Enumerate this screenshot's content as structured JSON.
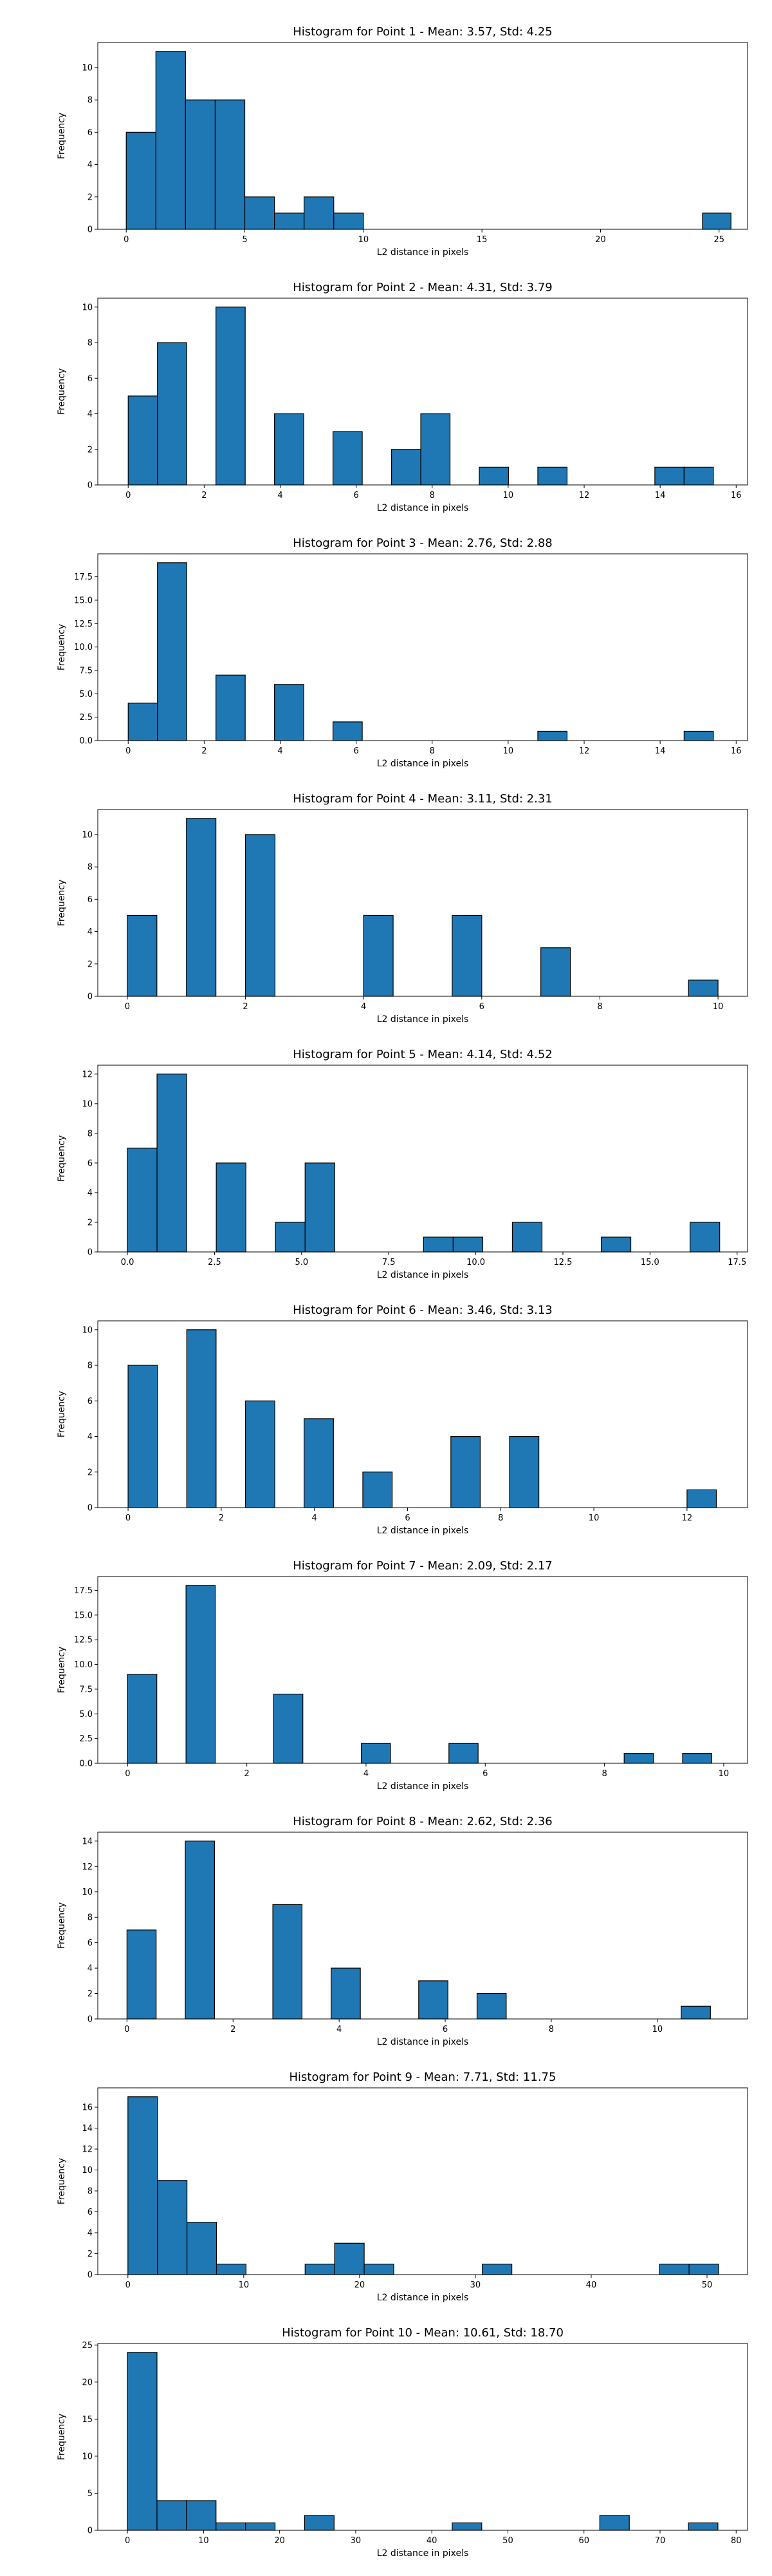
{
  "chart_data": [
    {
      "type": "bar",
      "title": "Histogram for Point 1 - Mean: 3.57, Std: 4.25",
      "xlabel": "L2 distance in pixels",
      "ylabel": "Frequency",
      "xlim": [
        -1.2,
        26.2
      ],
      "ylim": [
        0,
        11.55
      ],
      "xticks": [
        0,
        5,
        10,
        15,
        20,
        25
      ],
      "xtick_labels": [
        "0",
        "5",
        "10",
        "15",
        "20",
        "25"
      ],
      "yticks": [
        0,
        2,
        4,
        6,
        8,
        10
      ],
      "ytick_labels": [
        "0",
        "2",
        "4",
        "6",
        "8",
        "10"
      ],
      "bins": [
        {
          "x0": 0.0,
          "x1": 1.25,
          "count": 6
        },
        {
          "x0": 1.25,
          "x1": 2.5,
          "count": 11
        },
        {
          "x0": 2.5,
          "x1": 3.75,
          "count": 8
        },
        {
          "x0": 3.75,
          "x1": 5.0,
          "count": 8
        },
        {
          "x0": 5.0,
          "x1": 6.25,
          "count": 2
        },
        {
          "x0": 6.25,
          "x1": 7.5,
          "count": 1
        },
        {
          "x0": 7.5,
          "x1": 8.75,
          "count": 2
        },
        {
          "x0": 8.75,
          "x1": 10.0,
          "count": 1
        },
        {
          "x0": 24.3,
          "x1": 25.5,
          "count": 1
        }
      ]
    },
    {
      "type": "bar",
      "title": "Histogram for Point 2 - Mean: 4.31, Std: 3.79",
      "xlabel": "L2 distance in pixels",
      "ylabel": "Frequency",
      "xlim": [
        -0.8,
        16.3
      ],
      "ylim": [
        0,
        10.5
      ],
      "xticks": [
        0,
        2,
        4,
        6,
        8,
        10,
        12,
        14,
        16
      ],
      "xtick_labels": [
        "0",
        "2",
        "4",
        "6",
        "8",
        "10",
        "12",
        "14",
        "16"
      ],
      "yticks": [
        0,
        2,
        4,
        6,
        8,
        10
      ],
      "ytick_labels": [
        "0",
        "2",
        "4",
        "6",
        "8",
        "10"
      ],
      "bins": [
        {
          "x0": 0.0,
          "x1": 0.77,
          "count": 5
        },
        {
          "x0": 0.77,
          "x1": 1.54,
          "count": 8
        },
        {
          "x0": 2.31,
          "x1": 3.08,
          "count": 10
        },
        {
          "x0": 3.85,
          "x1": 4.62,
          "count": 4
        },
        {
          "x0": 5.39,
          "x1": 6.16,
          "count": 3
        },
        {
          "x0": 6.93,
          "x1": 7.7,
          "count": 2
        },
        {
          "x0": 7.7,
          "x1": 8.47,
          "count": 4
        },
        {
          "x0": 9.24,
          "x1": 10.01,
          "count": 1
        },
        {
          "x0": 10.78,
          "x1": 11.55,
          "count": 1
        },
        {
          "x0": 13.86,
          "x1": 14.63,
          "count": 1
        },
        {
          "x0": 14.63,
          "x1": 15.4,
          "count": 1
        }
      ]
    },
    {
      "type": "bar",
      "title": "Histogram for Point 3 - Mean: 2.76, Std: 2.88",
      "xlabel": "L2 distance in pixels",
      "ylabel": "Frequency",
      "xlim": [
        -0.8,
        16.3
      ],
      "ylim": [
        0,
        19.95
      ],
      "xticks": [
        0,
        2,
        4,
        6,
        8,
        10,
        12,
        14,
        16
      ],
      "xtick_labels": [
        "0",
        "2",
        "4",
        "6",
        "8",
        "10",
        "12",
        "14",
        "16"
      ],
      "yticks": [
        0,
        2.5,
        5,
        7.5,
        10,
        12.5,
        15,
        17.5
      ],
      "ytick_labels": [
        "0.0",
        "2.5",
        "5.0",
        "7.5",
        "10.0",
        "12.5",
        "15.0",
        "17.5"
      ],
      "bins": [
        {
          "x0": 0.0,
          "x1": 0.77,
          "count": 4
        },
        {
          "x0": 0.77,
          "x1": 1.54,
          "count": 19
        },
        {
          "x0": 2.31,
          "x1": 3.08,
          "count": 7
        },
        {
          "x0": 3.85,
          "x1": 4.62,
          "count": 6
        },
        {
          "x0": 5.39,
          "x1": 6.16,
          "count": 2
        },
        {
          "x0": 10.78,
          "x1": 11.55,
          "count": 1
        },
        {
          "x0": 14.63,
          "x1": 15.4,
          "count": 1
        }
      ]
    },
    {
      "type": "bar",
      "title": "Histogram for Point 4 - Mean: 3.11, Std: 2.31",
      "xlabel": "L2 distance in pixels",
      "ylabel": "Frequency",
      "xlim": [
        -0.5,
        10.5
      ],
      "ylim": [
        0,
        11.55
      ],
      "xticks": [
        0,
        2,
        4,
        6,
        8,
        10
      ],
      "xtick_labels": [
        "0",
        "2",
        "4",
        "6",
        "8",
        "10"
      ],
      "yticks": [
        0,
        2,
        4,
        6,
        8,
        10
      ],
      "ytick_labels": [
        "0",
        "2",
        "4",
        "6",
        "8",
        "10"
      ],
      "bins": [
        {
          "x0": 0.0,
          "x1": 0.5,
          "count": 5
        },
        {
          "x0": 1.0,
          "x1": 1.5,
          "count": 11
        },
        {
          "x0": 2.0,
          "x1": 2.5,
          "count": 10
        },
        {
          "x0": 4.0,
          "x1": 4.5,
          "count": 5
        },
        {
          "x0": 5.5,
          "x1": 6.0,
          "count": 5
        },
        {
          "x0": 7.0,
          "x1": 7.5,
          "count": 3
        },
        {
          "x0": 9.5,
          "x1": 10.0,
          "count": 1
        }
      ]
    },
    {
      "type": "bar",
      "title": "Histogram for Point 5 - Mean: 4.14, Std: 4.52",
      "xlabel": "L2 distance in pixels",
      "ylabel": "Frequency",
      "xlim": [
        -0.85,
        17.8
      ],
      "ylim": [
        0,
        12.6
      ],
      "xticks": [
        0,
        2.5,
        5,
        7.5,
        10,
        12.5,
        15,
        17.5
      ],
      "xtick_labels": [
        "0.0",
        "2.5",
        "5.0",
        "7.5",
        "10.0",
        "12.5",
        "15.0",
        "17.5"
      ],
      "yticks": [
        0,
        2,
        4,
        6,
        8,
        10,
        12
      ],
      "ytick_labels": [
        "0",
        "2",
        "4",
        "6",
        "8",
        "10",
        "12"
      ],
      "bins": [
        {
          "x0": 0.0,
          "x1": 0.85,
          "count": 7
        },
        {
          "x0": 0.85,
          "x1": 1.7,
          "count": 12
        },
        {
          "x0": 2.55,
          "x1": 3.4,
          "count": 6
        },
        {
          "x0": 4.25,
          "x1": 5.1,
          "count": 2
        },
        {
          "x0": 5.1,
          "x1": 5.95,
          "count": 6
        },
        {
          "x0": 8.5,
          "x1": 9.35,
          "count": 1
        },
        {
          "x0": 9.35,
          "x1": 10.2,
          "count": 1
        },
        {
          "x0": 11.05,
          "x1": 11.9,
          "count": 2
        },
        {
          "x0": 13.6,
          "x1": 14.45,
          "count": 1
        },
        {
          "x0": 16.15,
          "x1": 17.0,
          "count": 2
        }
      ]
    },
    {
      "type": "bar",
      "title": "Histogram for Point 6 - Mean: 3.46, Std: 3.13",
      "xlabel": "L2 distance in pixels",
      "ylabel": "Frequency",
      "xlim": [
        -0.65,
        13.3
      ],
      "ylim": [
        0,
        10.5
      ],
      "xticks": [
        0,
        2,
        4,
        6,
        8,
        10,
        12
      ],
      "xtick_labels": [
        "0",
        "2",
        "4",
        "6",
        "8",
        "10",
        "12"
      ],
      "yticks": [
        0,
        2,
        4,
        6,
        8,
        10
      ],
      "ytick_labels": [
        "0",
        "2",
        "4",
        "6",
        "8",
        "10"
      ],
      "bins": [
        {
          "x0": 0.0,
          "x1": 0.63,
          "count": 8
        },
        {
          "x0": 1.26,
          "x1": 1.89,
          "count": 10
        },
        {
          "x0": 2.52,
          "x1": 3.15,
          "count": 6
        },
        {
          "x0": 3.78,
          "x1": 4.41,
          "count": 5
        },
        {
          "x0": 5.04,
          "x1": 5.67,
          "count": 2
        },
        {
          "x0": 6.93,
          "x1": 7.56,
          "count": 4
        },
        {
          "x0": 8.19,
          "x1": 8.82,
          "count": 4
        },
        {
          "x0": 12.0,
          "x1": 12.63,
          "count": 1
        }
      ]
    },
    {
      "type": "bar",
      "title": "Histogram for Point 7 - Mean: 2.09, Std: 2.17",
      "xlabel": "L2 distance in pixels",
      "ylabel": "Frequency",
      "xlim": [
        -0.5,
        10.4
      ],
      "ylim": [
        0,
        18.9
      ],
      "xticks": [
        0,
        2,
        4,
        6,
        8,
        10
      ],
      "xtick_labels": [
        "0",
        "2",
        "4",
        "6",
        "8",
        "10"
      ],
      "yticks": [
        0,
        2.5,
        5,
        7.5,
        10,
        12.5,
        15,
        17.5
      ],
      "ytick_labels": [
        "0.0",
        "2.5",
        "5.0",
        "7.5",
        "10.0",
        "12.5",
        "15.0",
        "17.5"
      ],
      "bins": [
        {
          "x0": 0.0,
          "x1": 0.49,
          "count": 9
        },
        {
          "x0": 0.98,
          "x1": 1.47,
          "count": 18
        },
        {
          "x0": 2.45,
          "x1": 2.94,
          "count": 7
        },
        {
          "x0": 3.92,
          "x1": 4.41,
          "count": 2
        },
        {
          "x0": 5.39,
          "x1": 5.88,
          "count": 2
        },
        {
          "x0": 8.33,
          "x1": 8.82,
          "count": 1
        },
        {
          "x0": 9.31,
          "x1": 9.8,
          "count": 1
        }
      ]
    },
    {
      "type": "bar",
      "title": "Histogram for Point 8 - Mean: 2.62, Std: 2.36",
      "xlabel": "L2 distance in pixels",
      "ylabel": "Frequency",
      "xlim": [
        -0.55,
        11.7
      ],
      "ylim": [
        0,
        14.7
      ],
      "xticks": [
        0,
        2,
        4,
        6,
        8,
        10
      ],
      "xtick_labels": [
        "0",
        "2",
        "4",
        "6",
        "8",
        "10"
      ],
      "yticks": [
        0,
        2,
        4,
        6,
        8,
        10,
        12,
        14
      ],
      "ytick_labels": [
        "0",
        "2",
        "4",
        "6",
        "8",
        "10",
        "12",
        "14"
      ],
      "bins": [
        {
          "x0": 0.0,
          "x1": 0.55,
          "count": 7
        },
        {
          "x0": 1.1,
          "x1": 1.65,
          "count": 14
        },
        {
          "x0": 2.75,
          "x1": 3.3,
          "count": 9
        },
        {
          "x0": 3.85,
          "x1": 4.4,
          "count": 4
        },
        {
          "x0": 5.5,
          "x1": 6.05,
          "count": 3
        },
        {
          "x0": 6.6,
          "x1": 7.15,
          "count": 2
        },
        {
          "x0": 10.45,
          "x1": 11.0,
          "count": 1
        }
      ]
    },
    {
      "type": "bar",
      "title": "Histogram for Point 9 - Mean: 7.71, Std: 11.75",
      "xlabel": "L2 distance in pixels",
      "ylabel": "Frequency",
      "xlim": [
        -2.6,
        53.5
      ],
      "ylim": [
        0,
        17.85
      ],
      "xticks": [
        0,
        10,
        20,
        30,
        40,
        50
      ],
      "xtick_labels": [
        "0",
        "10",
        "20",
        "30",
        "40",
        "50"
      ],
      "yticks": [
        0,
        2,
        4,
        6,
        8,
        10,
        12,
        14,
        16
      ],
      "ytick_labels": [
        "0",
        "2",
        "4",
        "6",
        "8",
        "10",
        "12",
        "14",
        "16"
      ],
      "bins": [
        {
          "x0": 0.0,
          "x1": 2.55,
          "count": 17
        },
        {
          "x0": 2.55,
          "x1": 5.1,
          "count": 9
        },
        {
          "x0": 5.1,
          "x1": 7.65,
          "count": 5
        },
        {
          "x0": 7.65,
          "x1": 10.2,
          "count": 1
        },
        {
          "x0": 15.3,
          "x1": 17.85,
          "count": 1
        },
        {
          "x0": 17.85,
          "x1": 20.4,
          "count": 3
        },
        {
          "x0": 20.4,
          "x1": 22.95,
          "count": 1
        },
        {
          "x0": 30.6,
          "x1": 33.15,
          "count": 1
        },
        {
          "x0": 45.9,
          "x1": 48.45,
          "count": 1
        },
        {
          "x0": 48.45,
          "x1": 51.0,
          "count": 1
        }
      ]
    },
    {
      "type": "bar",
      "title": "Histogram for Point 10 - Mean: 10.61, Std: 18.70",
      "xlabel": "L2 distance in pixels",
      "ylabel": "Frequency",
      "xlim": [
        -3.9,
        81.5
      ],
      "ylim": [
        0,
        25.2
      ],
      "xticks": [
        0,
        10,
        20,
        30,
        40,
        50,
        60,
        70,
        80
      ],
      "xtick_labels": [
        "0",
        "10",
        "20",
        "30",
        "40",
        "50",
        "60",
        "70",
        "80"
      ],
      "yticks": [
        0,
        5,
        10,
        15,
        20,
        25
      ],
      "ytick_labels": [
        "0",
        "5",
        "10",
        "15",
        "20",
        "25"
      ],
      "bins": [
        {
          "x0": 0.0,
          "x1": 3.88,
          "count": 24
        },
        {
          "x0": 3.88,
          "x1": 7.76,
          "count": 4
        },
        {
          "x0": 7.76,
          "x1": 11.64,
          "count": 4
        },
        {
          "x0": 11.64,
          "x1": 15.52,
          "count": 1
        },
        {
          "x0": 15.52,
          "x1": 19.4,
          "count": 1
        },
        {
          "x0": 23.28,
          "x1": 27.16,
          "count": 2
        },
        {
          "x0": 42.68,
          "x1": 46.56,
          "count": 1
        },
        {
          "x0": 62.08,
          "x1": 65.96,
          "count": 2
        },
        {
          "x0": 73.72,
          "x1": 77.6,
          "count": 1
        }
      ]
    }
  ]
}
